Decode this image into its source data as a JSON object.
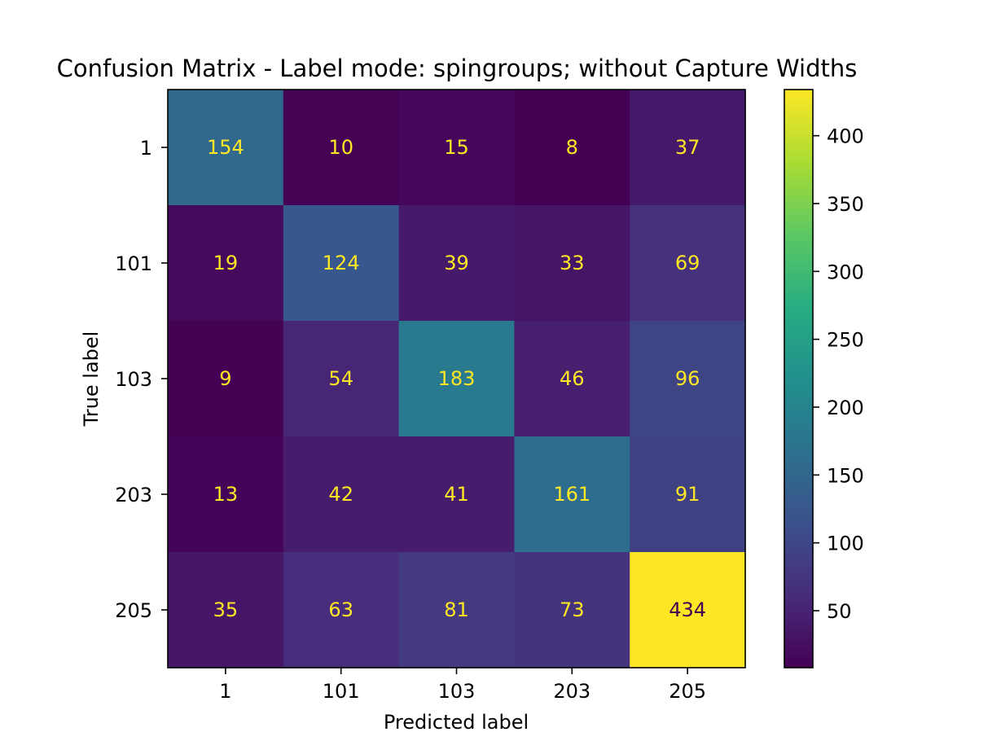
{
  "chart_data": {
    "type": "heatmap",
    "title": "Confusion Matrix - Label mode: spingroups; without Capture Widths",
    "xlabel": "Predicted label",
    "ylabel": "True label",
    "x_categories": [
      "1",
      "101",
      "103",
      "203",
      "205"
    ],
    "y_categories": [
      "1",
      "101",
      "103",
      "203",
      "205"
    ],
    "values": [
      [
        154,
        10,
        15,
        8,
        37
      ],
      [
        19,
        124,
        39,
        33,
        69
      ],
      [
        9,
        54,
        183,
        46,
        96
      ],
      [
        13,
        42,
        41,
        161,
        91
      ],
      [
        35,
        63,
        81,
        73,
        434
      ]
    ],
    "colormap": "viridis",
    "colorbar": {
      "range": [
        8,
        434
      ],
      "ticks": [
        50,
        100,
        150,
        200,
        250,
        300,
        350,
        400
      ]
    },
    "annotation_colors": {
      "on_dark": "#fde725",
      "on_light": "#440154"
    }
  }
}
